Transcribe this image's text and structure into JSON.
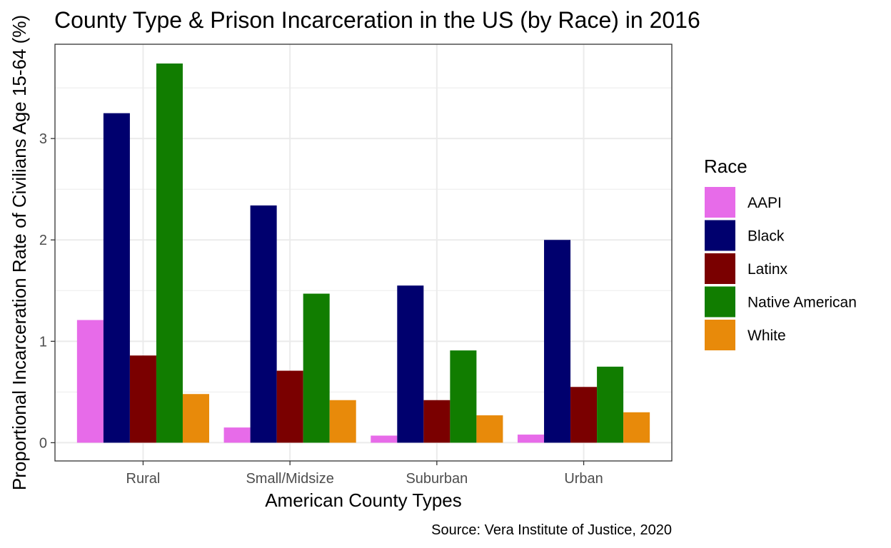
{
  "chart_data": {
    "type": "bar",
    "title": "County Type & Prison Incarceration in the US (by Race) in 2016",
    "xlabel": "American County Types",
    "ylabel": "Proportional Incarceration Rate of Civilians Age 15-64 (%)",
    "caption": "Source: Vera Institute of Justice, 2020",
    "categories": [
      "Rural",
      "Small/Midsize",
      "Suburban",
      "Urban"
    ],
    "ylim": [
      -0.18,
      3.93
    ],
    "yticks": [
      0,
      1,
      2,
      3
    ],
    "grid": true,
    "legend": {
      "title": "Race",
      "position": "right"
    },
    "series": [
      {
        "name": "AAPI",
        "color": "#E76BE9",
        "values": [
          1.21,
          0.15,
          0.07,
          0.08
        ]
      },
      {
        "name": "Black",
        "color": "#00006E",
        "values": [
          3.25,
          2.34,
          1.55,
          2.0
        ]
      },
      {
        "name": "Latinx",
        "color": "#7A0000",
        "values": [
          0.86,
          0.71,
          0.42,
          0.55
        ]
      },
      {
        "name": "Native American",
        "color": "#117D00",
        "values": [
          3.74,
          1.47,
          0.91,
          0.75
        ]
      },
      {
        "name": "White",
        "color": "#E88A0A",
        "values": [
          0.48,
          0.42,
          0.27,
          0.3
        ]
      }
    ]
  }
}
